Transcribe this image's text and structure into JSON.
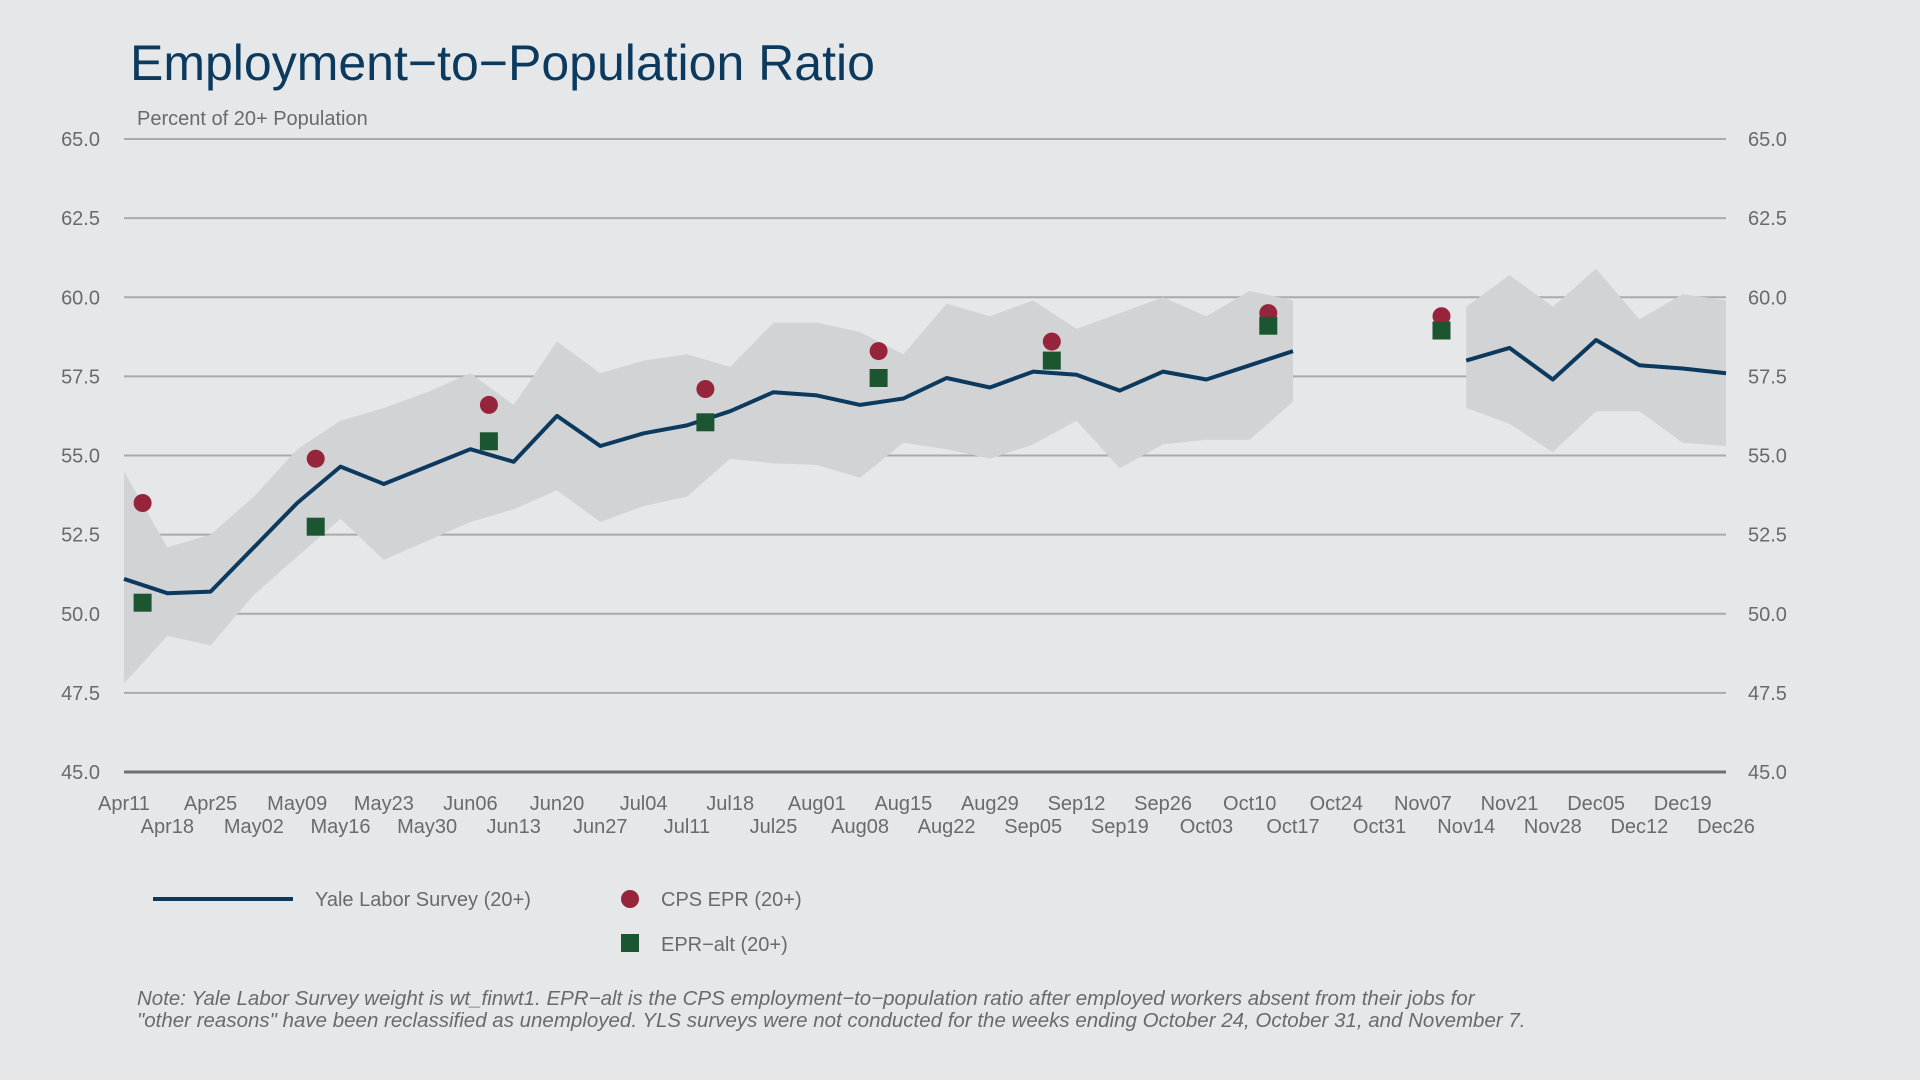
{
  "chart_data": {
    "type": "line",
    "title": "Employment−to−Population Ratio",
    "subtitle": "Percent of 20+ Population",
    "ylim": [
      45.0,
      65.0
    ],
    "y_ticks": [
      "45.0",
      "47.5",
      "50.0",
      "52.5",
      "55.0",
      "57.5",
      "60.0",
      "62.5",
      "65.0"
    ],
    "grid": true,
    "x_tick_labels_row1": [
      "Apr11",
      "Apr25",
      "May09",
      "May23",
      "Jun06",
      "Jun20",
      "Jul04",
      "Jul18",
      "Aug01",
      "Aug15",
      "Aug29",
      "Sep12",
      "Sep26",
      "Oct10",
      "Oct24",
      "Nov07",
      "Nov21",
      "Dec05",
      "Dec19"
    ],
    "x_tick_labels_row2": [
      "Apr18",
      "May02",
      "May16",
      "May30",
      "Jun13",
      "Jun27",
      "Jul11",
      "Jul25",
      "Aug08",
      "Aug22",
      "Sep05",
      "Sep19",
      "Oct03",
      "Oct17",
      "Oct31",
      "Nov14",
      "Nov28",
      "Dec12",
      "Dec26"
    ],
    "x": [
      "Apr11",
      "Apr18",
      "Apr25",
      "May02",
      "May09",
      "May16",
      "May23",
      "May30",
      "Jun06",
      "Jun13",
      "Jun20",
      "Jun27",
      "Jul04",
      "Jul11",
      "Jul18",
      "Jul25",
      "Aug01",
      "Aug08",
      "Aug15",
      "Aug22",
      "Aug29",
      "Sep05",
      "Sep12",
      "Sep19",
      "Sep26",
      "Oct03",
      "Oct10",
      "Oct17",
      "Oct24",
      "Oct31",
      "Nov07",
      "Nov14",
      "Nov21",
      "Nov28",
      "Dec05",
      "Dec12",
      "Dec19",
      "Dec26"
    ],
    "series": [
      {
        "name": "Yale Labor Survey (20+)",
        "color": "#0b3a5e",
        "values": [
          51.1,
          50.65,
          50.7,
          52.1,
          53.5,
          54.65,
          54.1,
          54.65,
          55.2,
          54.8,
          56.25,
          55.3,
          55.7,
          55.95,
          56.4,
          57.0,
          56.9,
          56.6,
          56.8,
          57.45,
          57.15,
          57.65,
          57.55,
          57.05,
          57.65,
          57.4,
          57.85,
          58.3,
          null,
          null,
          null,
          58.0,
          58.4,
          57.4,
          58.65,
          57.85,
          57.75,
          57.6
        ]
      },
      {
        "name": "YLS confidence band upper",
        "values": [
          54.5,
          52.1,
          52.5,
          53.7,
          55.2,
          56.1,
          56.5,
          57.0,
          57.6,
          56.6,
          58.6,
          57.6,
          58.0,
          58.2,
          57.8,
          59.2,
          59.2,
          58.9,
          58.2,
          59.8,
          59.4,
          59.9,
          59.0,
          59.5,
          60.0,
          59.4,
          60.2,
          59.9,
          null,
          null,
          null,
          59.7,
          60.7,
          59.7,
          60.9,
          59.3,
          60.1,
          59.9
        ]
      },
      {
        "name": "YLS confidence band lower",
        "values": [
          47.8,
          49.3,
          49.0,
          50.6,
          51.8,
          53.0,
          51.7,
          52.3,
          52.9,
          53.3,
          53.9,
          52.9,
          53.4,
          53.7,
          54.9,
          54.75,
          54.7,
          54.3,
          55.4,
          55.2,
          54.9,
          55.35,
          56.1,
          54.6,
          55.35,
          55.5,
          55.5,
          56.7,
          null,
          null,
          null,
          56.5,
          56.0,
          55.1,
          56.4,
          56.4,
          55.4,
          55.3
        ]
      },
      {
        "name": "CPS EPR (20+)",
        "color": "#96243a",
        "x": [
          "Apr14",
          "May12",
          "Jun09",
          "Jul14",
          "Aug11",
          "Sep08",
          "Oct13",
          "Nov10"
        ],
        "values": [
          53.5,
          54.9,
          56.6,
          57.1,
          58.3,
          58.6,
          59.5,
          59.4
        ]
      },
      {
        "name": "EPR−alt (20+)",
        "color": "#1c5631",
        "x": [
          "Apr14",
          "May12",
          "Jun09",
          "Jul14",
          "Aug11",
          "Sep08",
          "Oct13",
          "Nov10"
        ],
        "values": [
          50.35,
          52.75,
          55.45,
          56.05,
          57.45,
          58.0,
          59.1,
          58.95
        ]
      }
    ]
  },
  "legend": [
    {
      "label": "Yale Labor Survey (20+)",
      "symbol": "line",
      "color": "#0b3a5e"
    },
    {
      "label": "CPS EPR (20+)",
      "symbol": "circle",
      "color": "#96243a"
    },
    {
      "label": "EPR−alt (20+)",
      "symbol": "square",
      "color": "#1c5631"
    }
  ],
  "note": {
    "line1": "Note: Yale Labor Survey weight is wt_finwt1. EPR−alt is the CPS employment−to−population ratio after employed workers absent from their jobs for",
    "line2": "\"other reasons\" have been reclassified as unemployed. YLS surveys were not conducted for the weeks ending October 24, October 31, and November 7."
  },
  "colors": {
    "background": "#e6e7e9",
    "band": "#d2d3d5",
    "grid": "#a9aaac"
  }
}
